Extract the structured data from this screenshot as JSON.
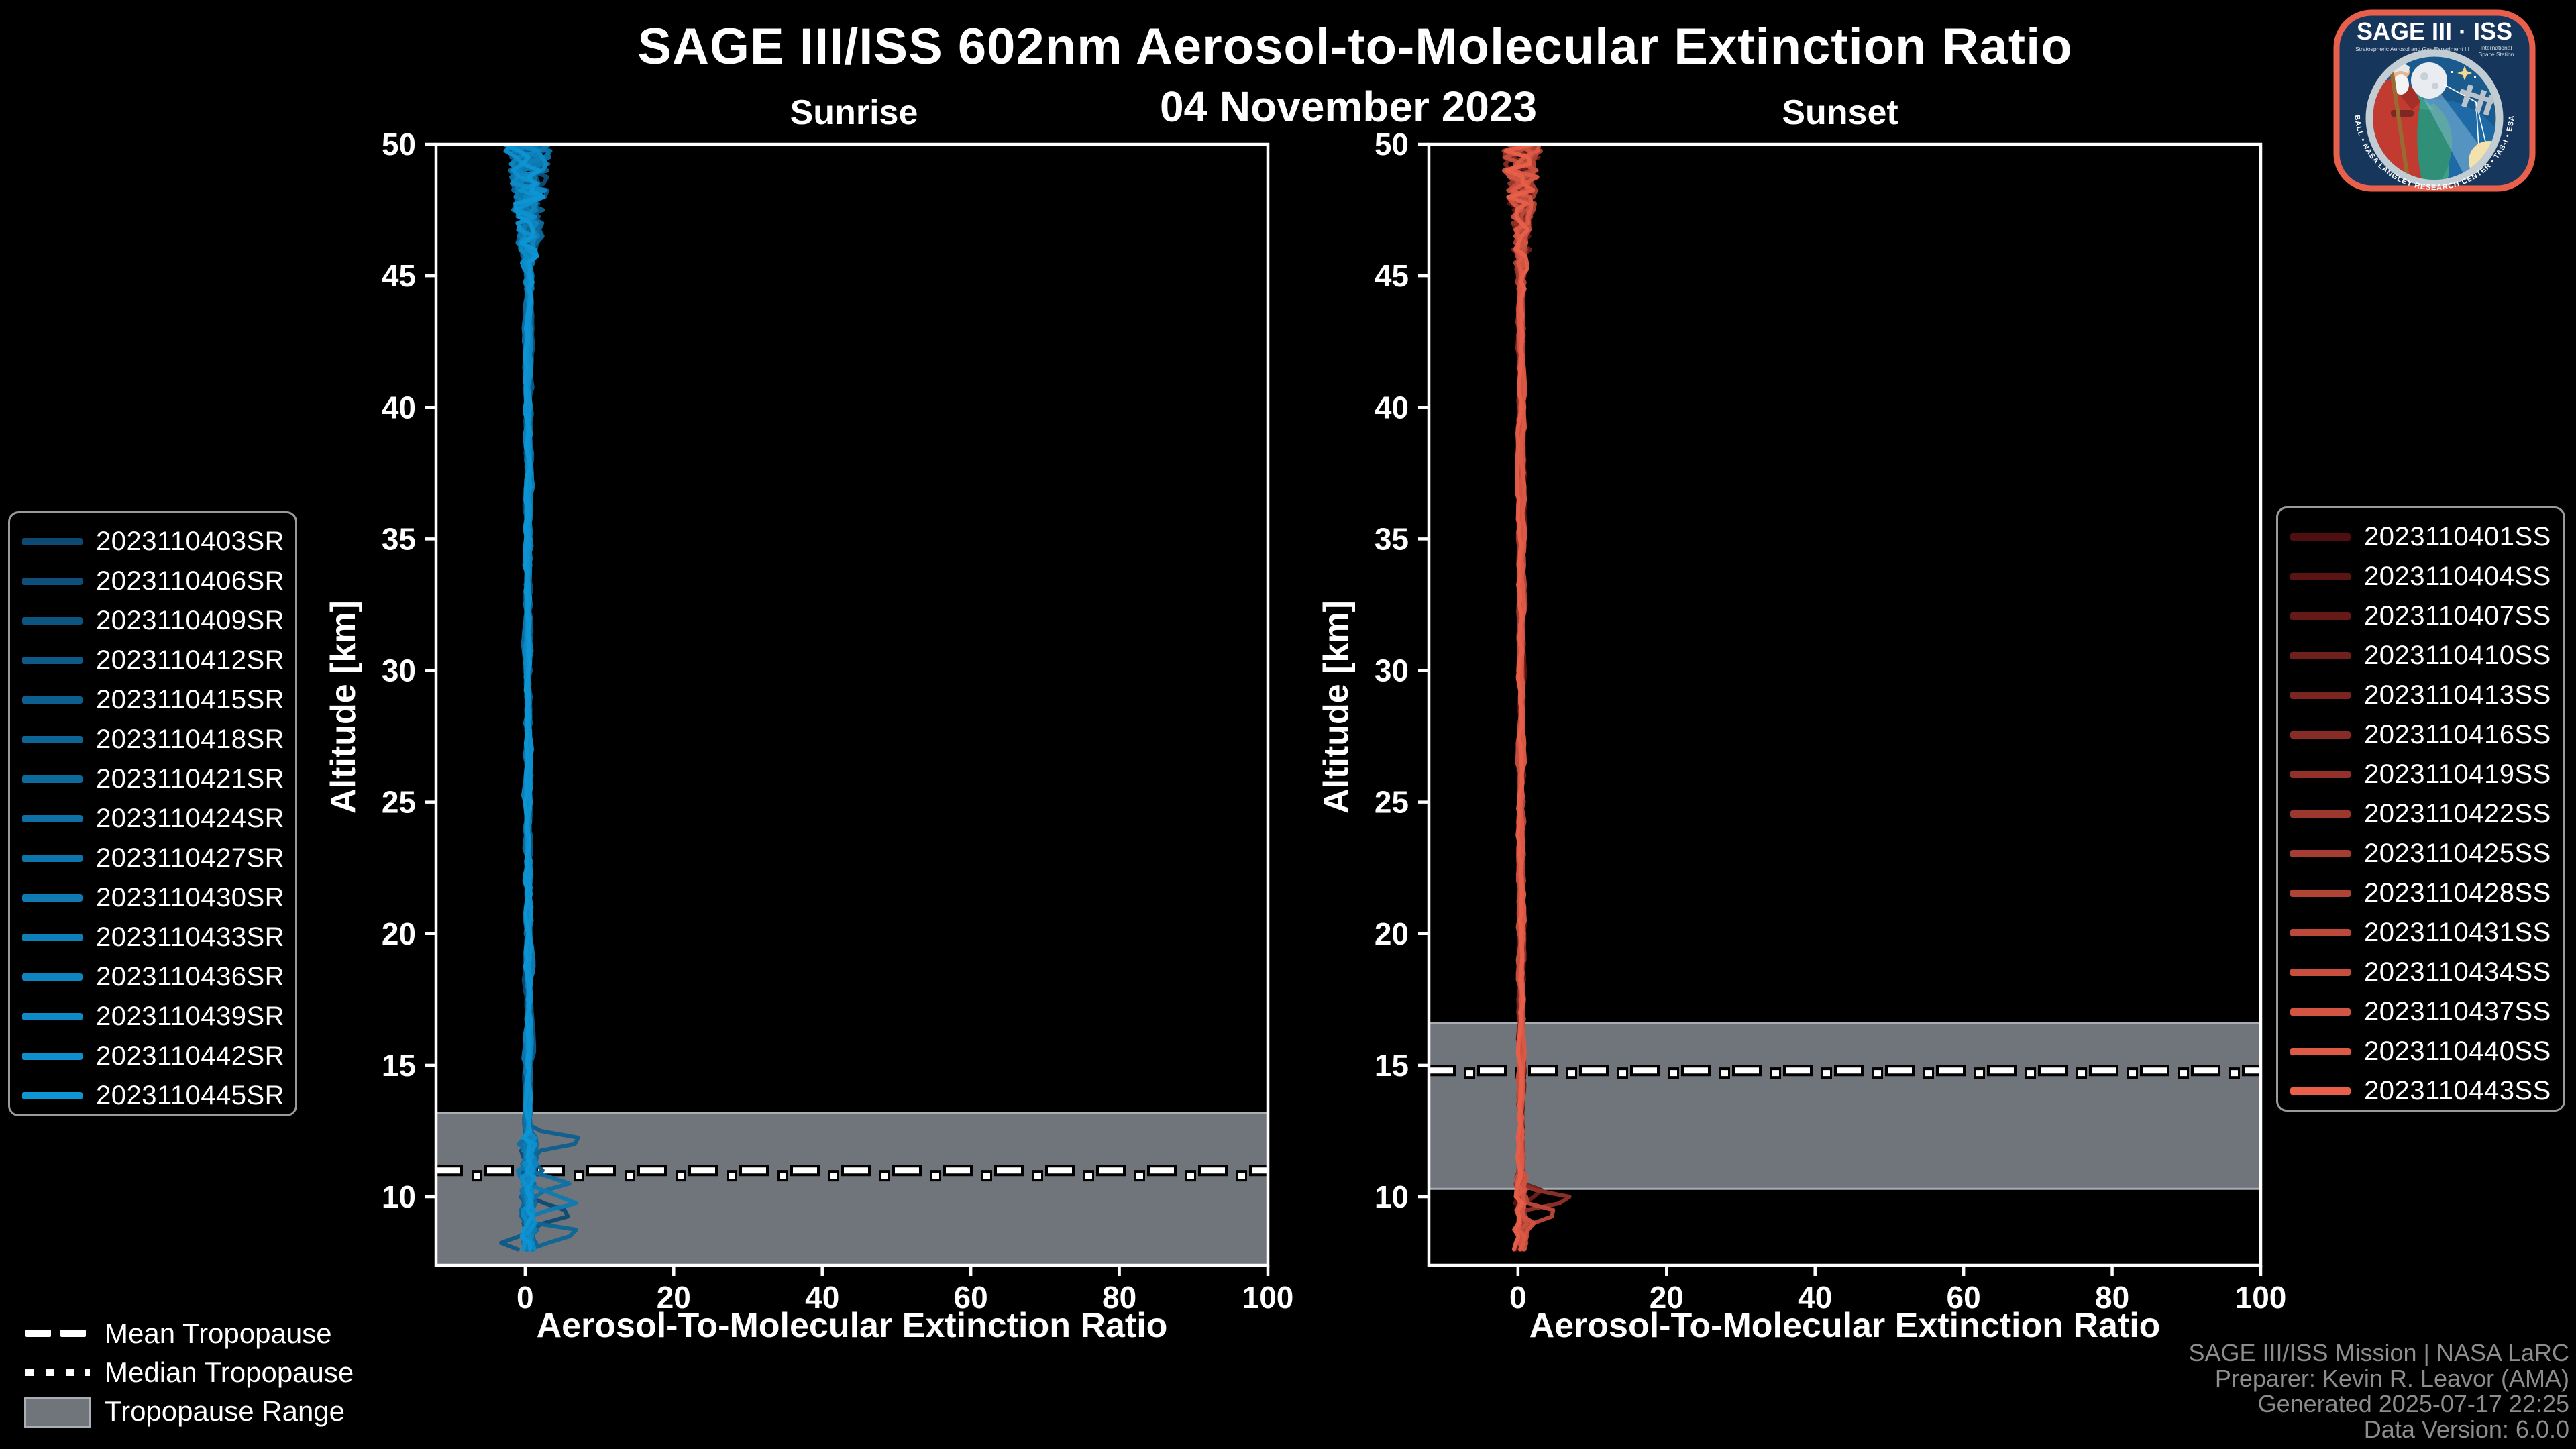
{
  "header": {
    "title": "SAGE III/ISS 602nm Aerosol-to-Molecular Extinction Ratio",
    "date": "04 November 2023"
  },
  "footer": {
    "lines": [
      "SAGE III/ISS Mission | NASA LaRC",
      "Preparer: Kevin R. Leavor (AMA)",
      "Generated 2025-07-17 22:25",
      "Data Version: 6.0.0"
    ]
  },
  "logo": {
    "title": "SAGE III · ISS",
    "subtitle_left": "Stratospheric Aerosol and Gas Experiment III",
    "subtitle_right_1": "International",
    "subtitle_right_2": "Space Station",
    "ring_text": "BALL • NASA LANGLEY RESEARCH CENTER • TAS-I • ESA",
    "border_color": "#e8604c",
    "bg_color": "#16365c"
  },
  "tropopause_legend": {
    "mean_label": "Mean Tropopause",
    "median_label": "Median Tropopause",
    "range_label": "Tropopause Range",
    "range_fill": "#70747b",
    "range_border": "#aaaeb5"
  },
  "style": {
    "band_fill": "#70747b",
    "band_edge": "#a9adb4",
    "spine_color": "#ffffff",
    "tick_color": "#ffffff",
    "text_color": "#ffffff"
  },
  "chart_data": [
    {
      "type": "line",
      "panel": "sunrise",
      "title": "Sunrise",
      "xlabel": "Aerosol-To-Molecular Extinction Ratio",
      "ylabel": "Altitude [km]",
      "xlim": [
        -12,
        100
      ],
      "ylim": [
        7.4,
        50
      ],
      "xticks": [
        0,
        20,
        40,
        60,
        80,
        100
      ],
      "yticks": [
        10,
        15,
        20,
        25,
        30,
        35,
        40,
        45,
        50
      ],
      "grid": false,
      "legend_position": "outside-left",
      "tropopause": {
        "mean_km": 11.0,
        "median_km": 10.8,
        "range_km": [
          7.4,
          13.2
        ]
      },
      "series": [
        {
          "name": "2023110403SR",
          "color": "#0d4a73"
        },
        {
          "name": "2023110406SR",
          "color": "#0d4f7a"
        },
        {
          "name": "2023110409SR",
          "color": "#0d5581"
        },
        {
          "name": "2023110412SR",
          "color": "#0d5a88"
        },
        {
          "name": "2023110415SR",
          "color": "#0d5f8f"
        },
        {
          "name": "2023110418SR",
          "color": "#0d6596"
        },
        {
          "name": "2023110421SR",
          "color": "#0d6a9d"
        },
        {
          "name": "2023110424SR",
          "color": "#0e70a4"
        },
        {
          "name": "2023110427SR",
          "color": "#0e75aa"
        },
        {
          "name": "2023110430SR",
          "color": "#0e7ab1"
        },
        {
          "name": "2023110433SR",
          "color": "#0e80b8"
        },
        {
          "name": "2023110436SR",
          "color": "#0e85bf"
        },
        {
          "name": "2023110439SR",
          "color": "#0e8ac6"
        },
        {
          "name": "2023110442SR",
          "color": "#0e90cd"
        },
        {
          "name": "2023110445SR",
          "color": "#0e95d4"
        }
      ],
      "profile": {
        "altitude_min_km": 7.8,
        "altitude_max_km": 50,
        "step_km": 0.25,
        "baseline_ratio": 0.45,
        "noise_amplitude": 0.35,
        "upper_noise_start_km": 44,
        "upper_noise_amplitude": 3.2,
        "lower_noise_start_km": 12.5,
        "lower_noise_amplitude": 0.9,
        "spikes": [
          {
            "series_index": 4,
            "altitude_km": 12.15,
            "ratio": 8.3,
            "width_km": 0.45
          },
          {
            "series_index": 2,
            "altitude_km": 11.0,
            "ratio": 2.6,
            "width_km": 0.4
          },
          {
            "series_index": 7,
            "altitude_km": 10.45,
            "ratio": 5.8,
            "width_km": 0.5
          },
          {
            "series_index": 9,
            "altitude_km": 9.8,
            "ratio": 8.3,
            "width_km": 0.55
          },
          {
            "series_index": 9,
            "altitude_km": 10.9,
            "ratio": -2.4,
            "width_km": 0.3
          },
          {
            "series_index": 0,
            "altitude_km": 9.35,
            "ratio": 8.0,
            "width_km": 0.5
          },
          {
            "series_index": 5,
            "altitude_km": 8.6,
            "ratio": 8.2,
            "width_km": 0.5
          },
          {
            "series_index": 3,
            "altitude_km": 8.2,
            "ratio": -3.5,
            "width_km": 0.4
          }
        ]
      }
    },
    {
      "type": "line",
      "panel": "sunset",
      "title": "Sunset",
      "xlabel": "Aerosol-To-Molecular Extinction Ratio",
      "ylabel": "Altitude [km]",
      "xlim": [
        -12,
        100
      ],
      "ylim": [
        7.4,
        50
      ],
      "xticks": [
        0,
        20,
        40,
        60,
        80,
        100
      ],
      "yticks": [
        10,
        15,
        20,
        25,
        30,
        35,
        40,
        45,
        50
      ],
      "grid": false,
      "legend_position": "outside-right",
      "tropopause": {
        "mean_km": 14.8,
        "median_km": 14.7,
        "range_km": [
          10.3,
          16.6
        ]
      },
      "series": [
        {
          "name": "2023110401SS",
          "color": "#4f0e10"
        },
        {
          "name": "2023110404SS",
          "color": "#5a1414"
        },
        {
          "name": "2023110407SS",
          "color": "#651a18"
        },
        {
          "name": "2023110410SS",
          "color": "#70201c"
        },
        {
          "name": "2023110413SS",
          "color": "#7b2521"
        },
        {
          "name": "2023110416SS",
          "color": "#862b25"
        },
        {
          "name": "2023110419SS",
          "color": "#913129"
        },
        {
          "name": "2023110422SS",
          "color": "#9c372d"
        },
        {
          "name": "2023110425SS",
          "color": "#a63d31"
        },
        {
          "name": "2023110428SS",
          "color": "#b14335"
        },
        {
          "name": "2023110431SS",
          "color": "#bc493a"
        },
        {
          "name": "2023110434SS",
          "color": "#c74f3e"
        },
        {
          "name": "2023110437SS",
          "color": "#d25442"
        },
        {
          "name": "2023110440SS",
          "color": "#dd5a46"
        },
        {
          "name": "2023110443SS",
          "color": "#e8604a"
        }
      ],
      "profile": {
        "altitude_min_km": 7.8,
        "altitude_max_km": 50,
        "step_km": 0.25,
        "baseline_ratio": 0.45,
        "noise_amplitude": 0.3,
        "upper_noise_start_km": 44,
        "upper_noise_amplitude": 2.6,
        "lower_noise_start_km": 10.8,
        "lower_noise_amplitude": 0.6,
        "spikes": [
          {
            "series_index": 6,
            "altitude_km": 9.9,
            "ratio": 8.3,
            "width_km": 0.45
          },
          {
            "series_index": 10,
            "altitude_km": 9.35,
            "ratio": 6.0,
            "width_km": 0.5
          },
          {
            "series_index": 3,
            "altitude_km": 10.2,
            "ratio": 3.2,
            "width_km": 0.4
          },
          {
            "series_index": 12,
            "altitude_km": 8.9,
            "ratio": 2.4,
            "width_km": 0.35
          }
        ]
      }
    }
  ]
}
